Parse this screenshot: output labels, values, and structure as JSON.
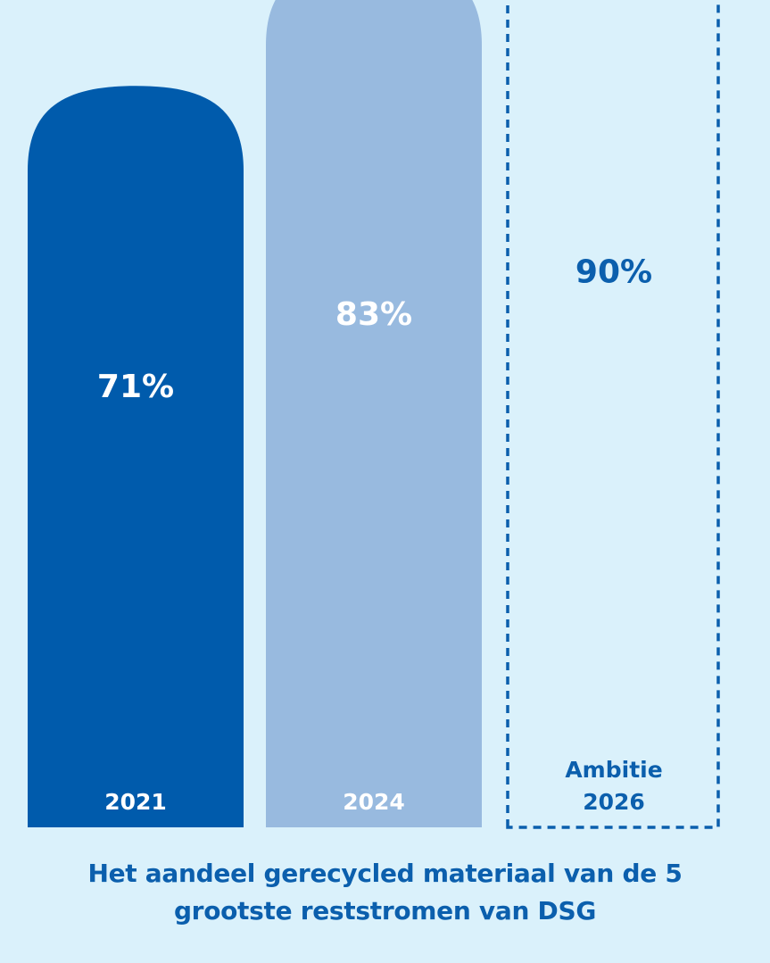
{
  "chart_data": {
    "type": "bar",
    "categories": [
      "2021",
      "2024",
      "Ambitie 2026"
    ],
    "category_lines": [
      [
        "2021"
      ],
      [
        "2024"
      ],
      [
        "Ambitie",
        "2026"
      ]
    ],
    "values": [
      71,
      83,
      90
    ],
    "labels": [
      "71%",
      "83%",
      "90%"
    ],
    "styles": [
      "solid",
      "solid",
      "dashed"
    ],
    "ylim": [
      0,
      100
    ],
    "title_lines": [
      "Het aandeel gerecycled materiaal van de 5",
      "grootste reststromen van DSG"
    ],
    "xlabel": "",
    "ylabel": ""
  },
  "colors": {
    "background": "#daf1fb",
    "bar_dark": "#005bac",
    "bar_light": "#98badf",
    "dashed": "#0b5fad",
    "text_white": "#ffffff",
    "text_blue": "#0b5fad"
  }
}
